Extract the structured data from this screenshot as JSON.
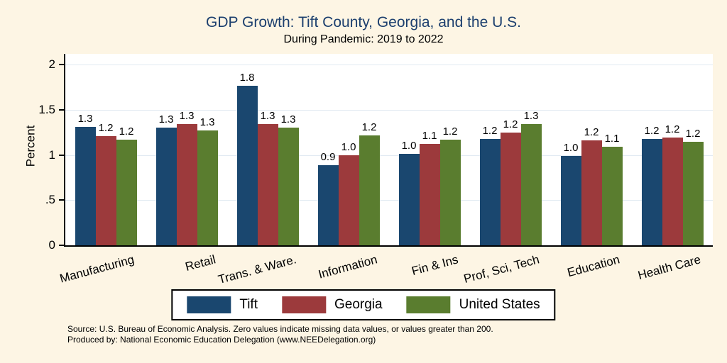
{
  "title": "GDP Growth: Tift County, Georgia, and the U.S.",
  "subtitle": "During Pandemic: 2019 to 2022",
  "chart_data": {
    "type": "bar",
    "categories": [
      "Manufacturing",
      "Retail",
      "Trans. & Ware.",
      "Information",
      "Fin & Ins",
      "Prof, Sci, Tech",
      "Education",
      "Health Care"
    ],
    "series": [
      {
        "name": "Tift",
        "color": "#1a476f",
        "values": [
          1.31,
          1.3,
          1.77,
          0.89,
          1.01,
          1.18,
          0.99,
          1.18
        ],
        "labels": [
          "1.3",
          "1.3",
          "1.8",
          "0.9",
          "1.0",
          "1.2",
          "1.0",
          "1.2"
        ]
      },
      {
        "name": "Georgia",
        "color": "#9c3a3c",
        "values": [
          1.21,
          1.34,
          1.34,
          1.0,
          1.12,
          1.25,
          1.16,
          1.19
        ],
        "labels": [
          "1.2",
          "1.3",
          "1.3",
          "1.0",
          "1.1",
          "1.2",
          "1.2",
          "1.2"
        ]
      },
      {
        "name": "United States",
        "color": "#5a7d2f",
        "values": [
          1.17,
          1.27,
          1.3,
          1.22,
          1.17,
          1.34,
          1.09,
          1.15
        ],
        "labels": [
          "1.2",
          "1.3",
          "1.3",
          "1.2",
          "1.2",
          "1.3",
          "1.1",
          "1.2"
        ]
      }
    ],
    "ylabel": "Percent",
    "yticks": [
      "0",
      ".5",
      "1",
      "1.5",
      "2"
    ],
    "ytick_values": [
      0,
      0.5,
      1,
      1.5,
      2
    ],
    "ylim": [
      0,
      2.12
    ],
    "grid": true,
    "legend_position": "bottom"
  },
  "notes": {
    "line1": "Source: U.S. Bureau of Economic Analysis. Zero values indicate missing data values, or values greater than 200.",
    "line2": "Produced by: National Economic Education Delegation (www.NEEDelegation.org)"
  },
  "colors": {
    "background": "#fdf5e4",
    "title": "#1c3f6e",
    "gridline": "#e1eaf2",
    "plot_background": "#ffffff"
  }
}
